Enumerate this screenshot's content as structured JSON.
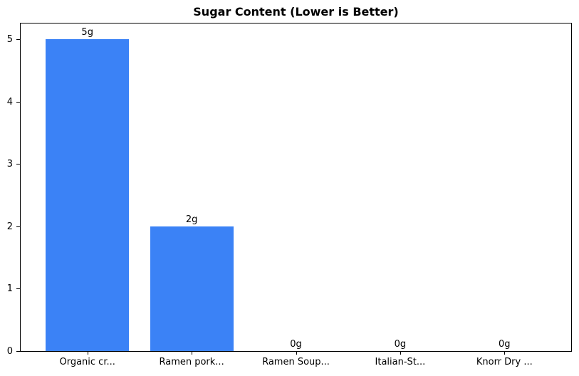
{
  "chart_data": {
    "type": "bar",
    "title": "Sugar Content (Lower is Better)",
    "categories": [
      "Organic cr...",
      "Ramen pork...",
      "Ramen Soup...",
      "Italian-St...",
      "Knorr Dry ..."
    ],
    "values": [
      5,
      2,
      0,
      0,
      0
    ],
    "value_labels": [
      "5g",
      "2g",
      "0g",
      "0g",
      "0g"
    ],
    "yticks": [
      0,
      1,
      2,
      3,
      4,
      5
    ],
    "ylim": [
      0,
      5.25
    ],
    "xlim": [
      -0.64,
      4.64
    ],
    "bar_width": 0.8,
    "xlabel": "",
    "ylabel": "",
    "grid": false,
    "legend": null,
    "colors": {
      "bar": "#3b82f6",
      "axis": "#000000",
      "text": "#000000",
      "background": "#ffffff"
    }
  }
}
